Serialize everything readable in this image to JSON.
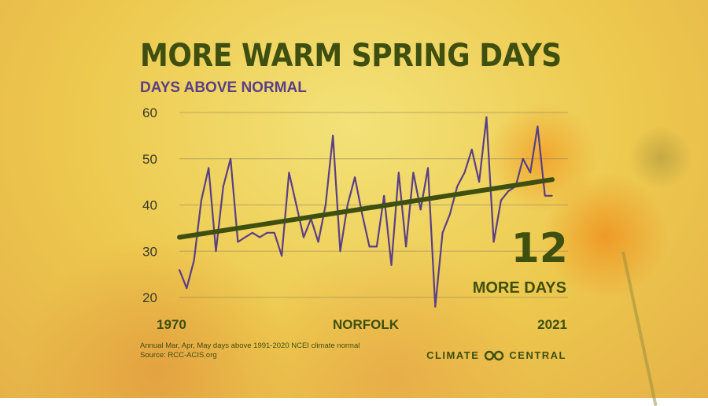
{
  "header": {
    "title": "MORE WARM SPRING DAYS",
    "subtitle": "DAYS ABOVE NORMAL"
  },
  "callout": {
    "number": "12",
    "text": "MORE DAYS"
  },
  "footnote": {
    "line1": "Annual Mar, Apr, May days above 1991-2020 NCEI climate normal",
    "line2": "Source: RCC-ACIS.org"
  },
  "brand": {
    "name_left": "CLIMATE",
    "name_right": "CENTRAL",
    "logo_icon": "infinity-icon"
  },
  "colors": {
    "title": "#3e4f10",
    "subtitle": "#5a3f86",
    "series_line": "#5a3f86",
    "trend_line": "#3e4f10",
    "grid": "#8a8060"
  },
  "chart_data": {
    "type": "line",
    "title": "MORE WARM SPRING DAYS",
    "subtitle": "DAYS ABOVE NORMAL",
    "xlabel": "NORFOLK",
    "x_tick_labels": [
      "1970",
      "2021"
    ],
    "y_ticks": [
      20,
      30,
      40,
      50,
      60
    ],
    "xlim": [
      1970,
      2021
    ],
    "ylim": [
      20,
      60
    ],
    "grid": true,
    "series": [
      {
        "x": [
          1970,
          1971,
          1972,
          1973,
          1974,
          1975,
          1976,
          1977,
          1978,
          1979,
          1980,
          1981,
          1982,
          1983,
          1984,
          1985,
          1986,
          1987,
          1988,
          1989,
          1990,
          1991,
          1992,
          1993,
          1994,
          1995,
          1996,
          1997,
          1998,
          1999,
          2000,
          2001,
          2002,
          2003,
          2004,
          2005,
          2006,
          2007,
          2008,
          2009,
          2010,
          2011,
          2012,
          2013,
          2014,
          2015,
          2016,
          2017,
          2018,
          2019,
          2020,
          2021
        ],
        "values": [
          26,
          22,
          28,
          41,
          48,
          30,
          44,
          50,
          32,
          33,
          34,
          33,
          34,
          34,
          29,
          47,
          40,
          33,
          37,
          32,
          40,
          55,
          30,
          40,
          46,
          38,
          31,
          31,
          42,
          27,
          47,
          31,
          47,
          39,
          48,
          18,
          34,
          38,
          44,
          47,
          52,
          45,
          59,
          32,
          41,
          43,
          44,
          50,
          47,
          57,
          42,
          42
        ]
      },
      {
        "values_trend_start": 33,
        "values_trend_end": 45.5,
        "x": [
          1970,
          2021
        ],
        "values": [
          33,
          45.5
        ]
      }
    ]
  }
}
